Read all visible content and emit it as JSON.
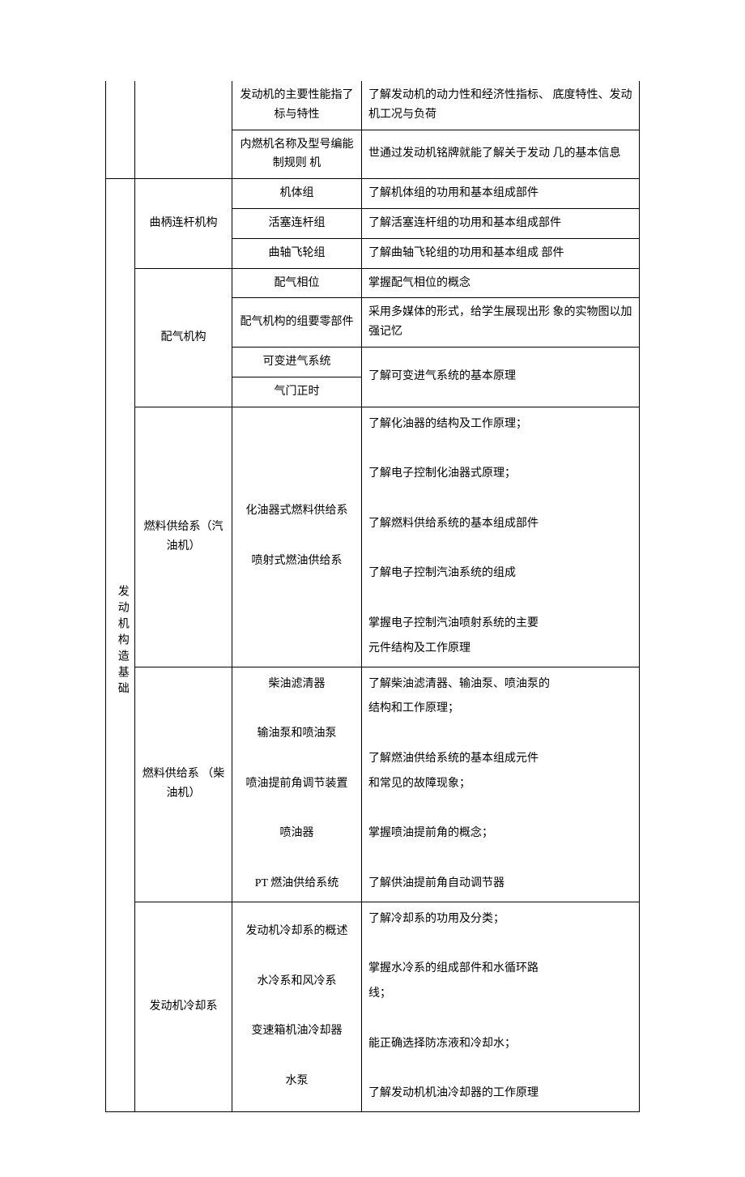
{
  "topRows": [
    {
      "c3": "发动机的主要性能指了 标与特性",
      "c4": "了解发动机的动力性和经济性指标、 底度特性、发动机工况与负荷"
    },
    {
      "c3": "内燃机名称及型号编能制规则          机",
      "c4": "世通过发动机铭牌就能了解关于发动 几的基本信息"
    }
  ],
  "mainCategory": "发动机构造基础",
  "sections": [
    {
      "sub": "曲柄连杆机构",
      "rows": [
        {
          "c3": "机体组",
          "c4": "了解机体组的功用和基本组成部件"
        },
        {
          "c3": "活塞连杆组",
          "c4": "了解活塞连杆组的功用和基本组成部件"
        },
        {
          "c3": "曲轴飞轮组",
          "c4": "了解曲轴飞轮组的功用和基本组成 部件"
        }
      ]
    },
    {
      "sub": "配气机构",
      "rows": [
        {
          "c3": "配气相位",
          "c4": "掌握配气相位的概念"
        },
        {
          "c3": "配气机构的组要零部件",
          "c4": "采用多媒体的形式，给学生展现出形 象的实物图以加强记忆"
        },
        {
          "c3": "可变进气系统",
          "c4_merge_next": true
        },
        {
          "c3": "气门正时",
          "c4": "了解可变进气系统的基本原理"
        }
      ]
    },
    {
      "sub": "燃料供给系（汽油机）",
      "c3": "化油器式燃料供给系\n\n喷射式燃油供给系",
      "c4": "了解化油器的结构及工作原理；\n\n了解电子控制化油器式原理；\n\n了解燃料供给系统的基本组成部件\n\n了解电子控制汽油系统的组成\n\n掌握电子控制汽油喷射系统的主要\n元件结构及工作原理"
    },
    {
      "sub": "燃料供给系 （柴油机）",
      "c3": "柴油滤清器\n\n输油泵和喷油泵\n\n喷油提前角调节装置\n\n喷油器\n\nPT 燃油供给系统",
      "c4": "了解柴油滤清器、输油泵、喷油泵的\n结构和工作原理；\n\n了解燃油供给系统的基本组成元件\n和常见的故障现象；\n\n掌握喷油提前角的概念；\n\n了解供油提前角自动调节器"
    },
    {
      "sub": "发动机冷却系",
      "c3": "发动机冷却系的概述\n\n水冷系和风冷系\n\n变速箱机油冷却器\n\n水泵",
      "c4": "了解冷却系的功用及分类；\n\n掌握水冷系的组成部件和水循环路\n线；\n\n能正确选择防冻液和冷却水；\n\n了解发动机机油冷却器的工作原理"
    }
  ]
}
